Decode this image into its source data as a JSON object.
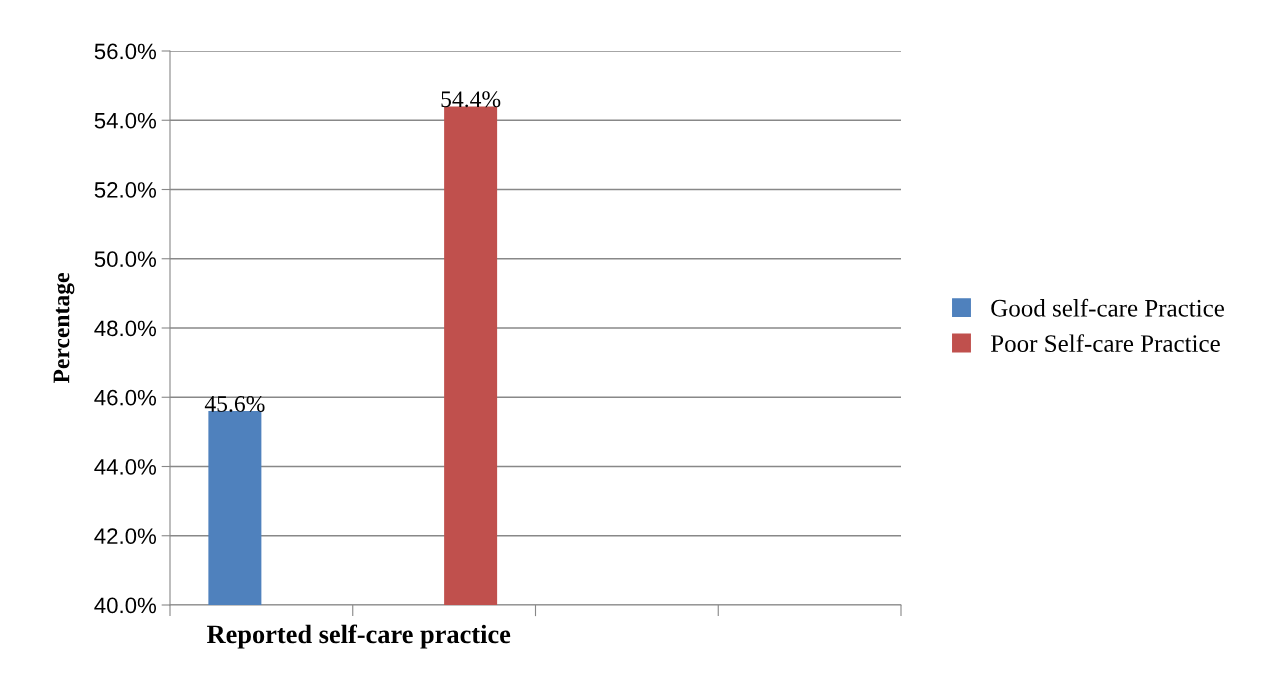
{
  "chart_data": {
    "type": "bar",
    "xlabel": "Reported self-care practice",
    "ylabel": "Percentage",
    "categories": [
      null,
      null,
      null,
      null
    ],
    "series": [
      {
        "name": "Good self-care Practice",
        "color": "#4f81bd",
        "values": [
          45.6,
          null,
          null,
          null
        ],
        "value_labels": [
          "45.6%",
          null,
          null,
          null
        ]
      },
      {
        "name": "Poor Self-care Practice",
        "color": "#c0504d",
        "values": [
          null,
          54.4,
          null,
          null
        ],
        "value_labels": [
          null,
          "54.4%",
          null,
          null
        ]
      }
    ],
    "ylim": [
      40,
      56
    ],
    "yticks": [
      {
        "value": 40,
        "label": "40.0%"
      },
      {
        "value": 42,
        "label": "42.0%"
      },
      {
        "value": 44,
        "label": "44.0%"
      },
      {
        "value": 46,
        "label": "46.0%"
      },
      {
        "value": 48,
        "label": "48.0%"
      },
      {
        "value": 50,
        "label": "50.0%"
      },
      {
        "value": 52,
        "label": "52.0%"
      },
      {
        "value": 54,
        "label": "54.0%"
      },
      {
        "value": 56,
        "label": "56.0%"
      }
    ],
    "grid": "y",
    "legend": "right",
    "tick_labels": "y"
  }
}
